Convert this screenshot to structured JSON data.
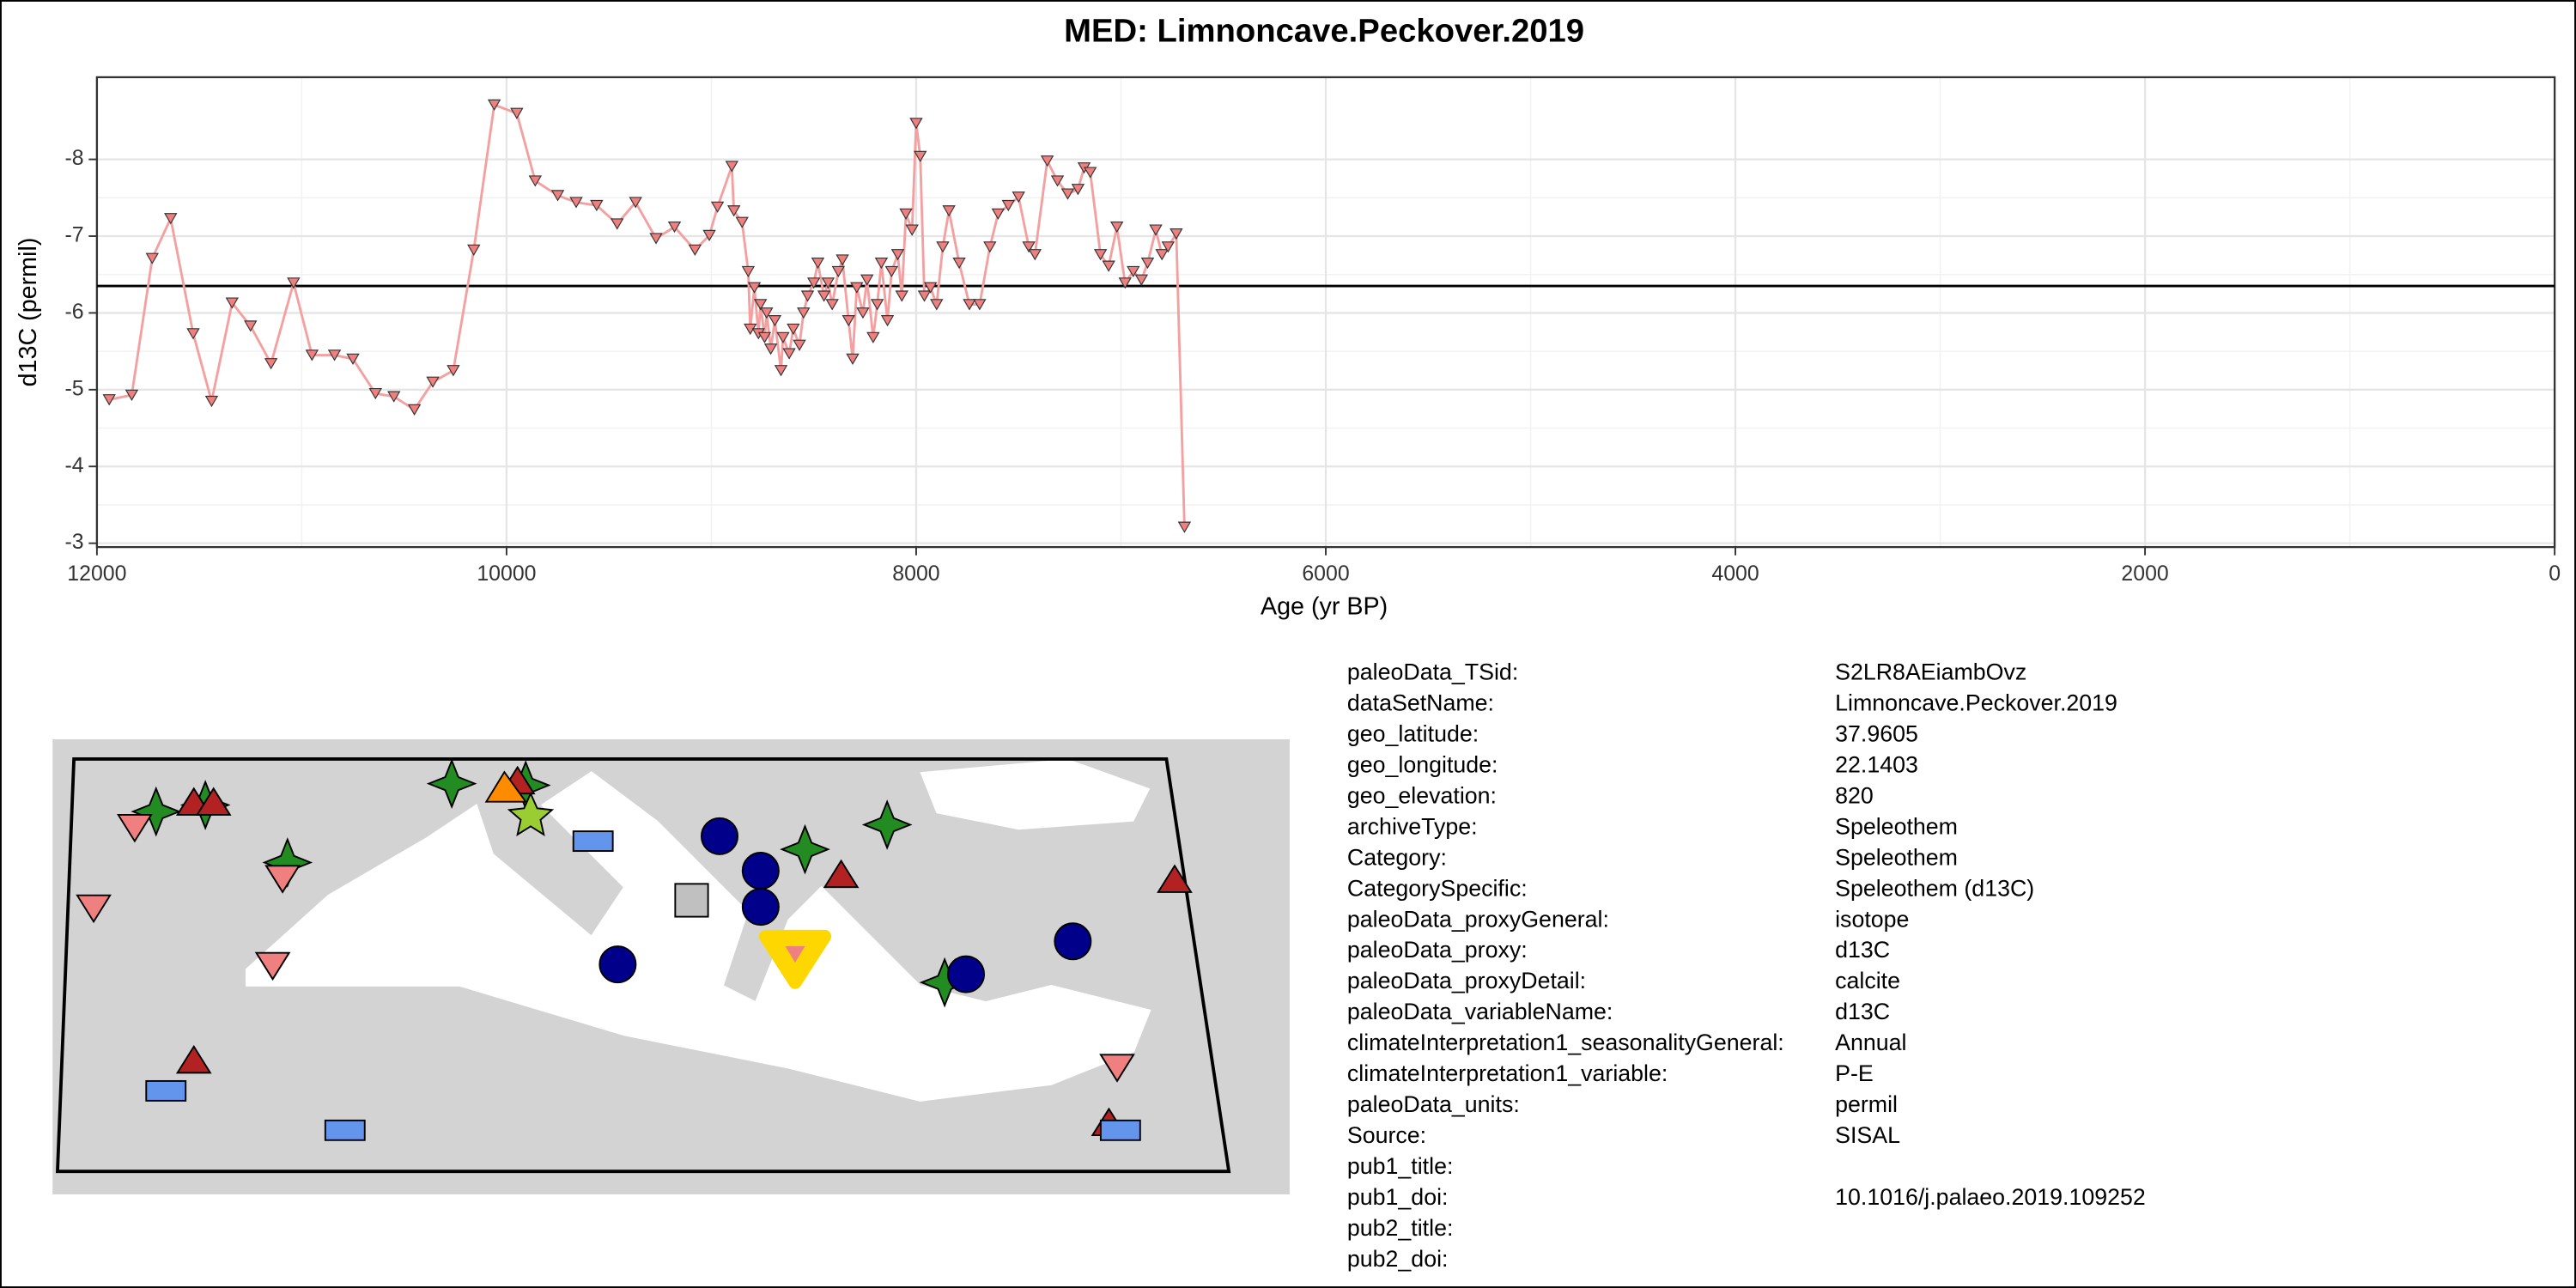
{
  "chart_data": {
    "type": "line",
    "title": "MED: Limnoncave.Peckover.2019",
    "x_label": "Age (yr BP)",
    "y_label": "d13C (permil)",
    "x": [
      11940,
      11830,
      11730,
      11640,
      11530,
      11440,
      11340,
      11250,
      11150,
      11040,
      10950,
      10840,
      10750,
      10640,
      10550,
      10450,
      10360,
      10260,
      10160,
      10060,
      9950,
      9860,
      9750,
      9660,
      9560,
      9460,
      9370,
      9270,
      9180,
      9080,
      9010,
      8970,
      8900,
      8890,
      8850,
      8820,
      8810,
      8790,
      8770,
      8760,
      8740,
      8730,
      8710,
      8690,
      8660,
      8650,
      8620,
      8600,
      8570,
      8550,
      8530,
      8500,
      8480,
      8450,
      8430,
      8410,
      8380,
      8360,
      8330,
      8310,
      8290,
      8260,
      8240,
      8210,
      8190,
      8170,
      8140,
      8120,
      8090,
      8070,
      8050,
      8020,
      8000,
      7980,
      7960,
      7930,
      7900,
      7870,
      7840,
      7790,
      7740,
      7690,
      7640,
      7600,
      7550,
      7500,
      7450,
      7420,
      7360,
      7310,
      7260,
      7210,
      7180,
      7150,
      7100,
      7060,
      7020,
      6980,
      6940,
      6900,
      6870,
      6830,
      6800,
      6770,
      6730,
      6690
    ],
    "series": [
      {
        "color": "#f4a0a0",
        "marker_color": "#f08080",
        "values": [
          -4.87,
          -4.93,
          -6.71,
          -7.23,
          -5.73,
          -4.85,
          -6.13,
          -5.83,
          -5.34,
          -6.39,
          -5.45,
          -5.45,
          -5.4,
          -4.95,
          -4.91,
          -4.74,
          -5.1,
          -5.25,
          -6.82,
          -8.71,
          -8.6,
          -7.72,
          -7.53,
          -7.44,
          -7.4,
          -7.16,
          -7.44,
          -6.97,
          -7.12,
          -6.82,
          -7.01,
          -7.38,
          -7.91,
          -7.33,
          -7.18,
          -6.54,
          -5.79,
          -6.33,
          -5.73,
          -6.11,
          -5.68,
          -6.0,
          -5.53,
          -5.9,
          -5.25,
          -5.68,
          -5.47,
          -5.79,
          -5.58,
          -6.0,
          -6.22,
          -6.39,
          -6.65,
          -6.22,
          -6.39,
          -6.11,
          -6.54,
          -6.69,
          -5.9,
          -5.4,
          -6.33,
          -6.0,
          -6.43,
          -5.68,
          -6.11,
          -6.65,
          -5.9,
          -6.54,
          -6.76,
          -6.22,
          -7.29,
          -7.08,
          -8.47,
          -8.04,
          -6.22,
          -6.33,
          -6.11,
          -6.86,
          -7.33,
          -6.65,
          -6.11,
          -6.11,
          -6.86,
          -7.29,
          -7.4,
          -7.51,
          -6.86,
          -6.76,
          -7.98,
          -7.72,
          -7.55,
          -7.61,
          -7.89,
          -7.83,
          -6.76,
          -6.61,
          -7.12,
          -6.39,
          -6.54,
          -6.43,
          -6.65,
          -7.08,
          -6.76,
          -6.86,
          -7.03,
          -3.21
        ]
      }
    ],
    "hline": -6.35,
    "xlim": [
      12000,
      0
    ],
    "xticks": [
      12000,
      10000,
      8000,
      6000,
      4000,
      2000,
      0
    ],
    "ylim": [
      -2.95,
      -9.07
    ],
    "yticks": [
      -8,
      -7,
      -6,
      -5,
      -4,
      -3
    ],
    "grid": true
  },
  "table": {
    "rows": [
      [
        "paleoData_TSid:",
        "S2LR8AEiambOvz"
      ],
      [
        "dataSetName:",
        "Limnoncave.Peckover.2019"
      ],
      [
        "geo_latitude:",
        "37.9605"
      ],
      [
        "geo_longitude:",
        "22.1403"
      ],
      [
        "geo_elevation:",
        "820"
      ],
      [
        "archiveType:",
        "Speleothem"
      ],
      [
        "Category:",
        "Speleothem"
      ],
      [
        "CategorySpecific:",
        "Speleothem (d13C)"
      ],
      [
        "paleoData_proxyGeneral:",
        "isotope"
      ],
      [
        "paleoData_proxy:",
        "d13C"
      ],
      [
        "paleoData_proxyDetail:",
        "calcite"
      ],
      [
        "paleoData_variableName:",
        "d13C"
      ],
      [
        "climateInterpretation1_seasonalityGeneral:",
        "Annual"
      ],
      [
        "climateInterpretation1_variable:",
        "P-E"
      ],
      [
        "paleoData_units:",
        "permil"
      ],
      [
        "Source:",
        "SISAL"
      ],
      [
        "pub1_title:"
      ],
      [
        "pub1_doi:",
        "10.1016/j.palaeo.2019.109252"
      ],
      [
        "pub2_title:"
      ],
      [
        "pub2_doi:"
      ]
    ]
  }
}
